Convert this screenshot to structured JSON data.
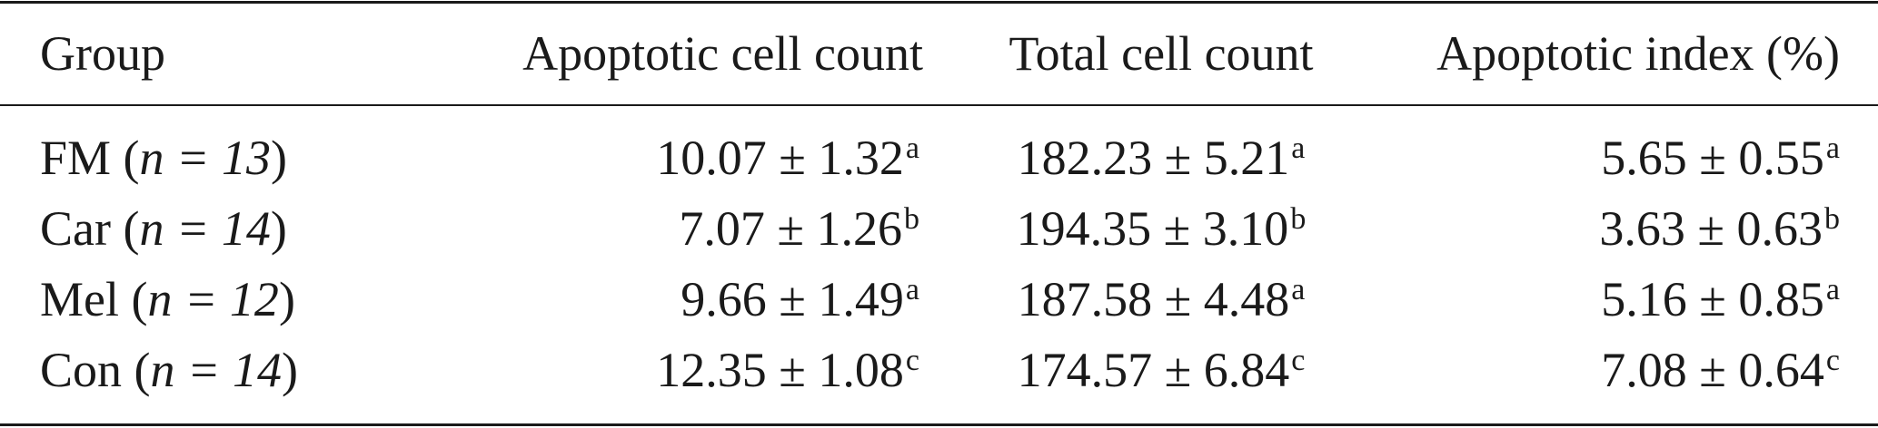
{
  "table": {
    "headers": [
      "Group",
      "Apoptotic cell count",
      "Total cell count",
      "Apoptotic index (%)"
    ],
    "rows": [
      {
        "group_name": "FM",
        "group_n": "n = 13",
        "apoptotic": "10.07 ± 1.32",
        "apoptotic_sup": "a",
        "total": "182.23 ± 5.21",
        "total_sup": "a",
        "index": "5.65 ± 0.55",
        "index_sup": "a"
      },
      {
        "group_name": "Car",
        "group_n": "n = 14",
        "apoptotic": "7.07 ± 1.26",
        "apoptotic_sup": "b",
        "total": "194.35 ± 3.10",
        "total_sup": "b",
        "index": "3.63 ± 0.63",
        "index_sup": "b"
      },
      {
        "group_name": "Mel",
        "group_n": "n = 12",
        "apoptotic": "9.66 ± 1.49",
        "apoptotic_sup": "a",
        "total": "187.58 ± 4.48",
        "total_sup": "a",
        "index": "5.16 ± 0.85",
        "index_sup": "a"
      },
      {
        "group_name": "Con",
        "group_n": "n = 14",
        "apoptotic": "12.35 ± 1.08",
        "apoptotic_sup": "c",
        "total": "174.57 ± 6.84",
        "total_sup": "c",
        "index": "7.08 ± 0.64",
        "index_sup": "c"
      }
    ]
  }
}
